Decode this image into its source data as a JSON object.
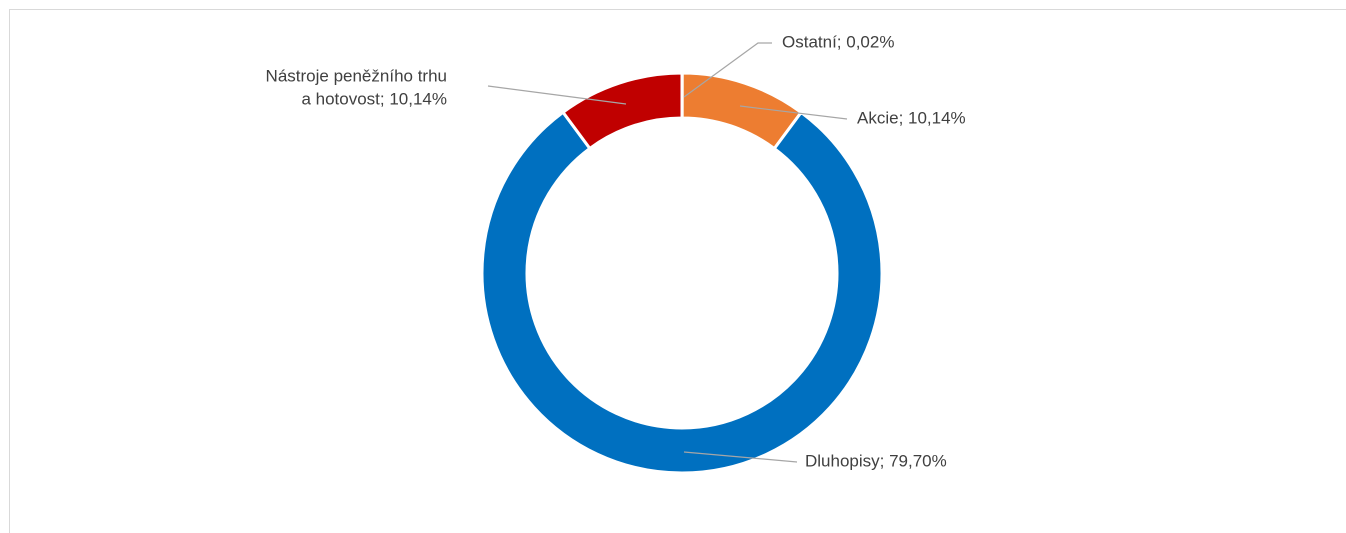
{
  "chart_data": {
    "type": "donut",
    "values": [
      0.02,
      10.14,
      79.7,
      10.14
    ],
    "value_labels": [
      "Ostatní; 0,02%",
      "Akcie; 10,14%",
      "Dluhopisy; 79,70%",
      [
        "Nástroje peněžního trhu",
        "a hotovost; 10,14%"
      ]
    ],
    "colors": [
      "#a5a5a5",
      "#ed7d31",
      "#0070c0",
      "#c00000"
    ]
  }
}
